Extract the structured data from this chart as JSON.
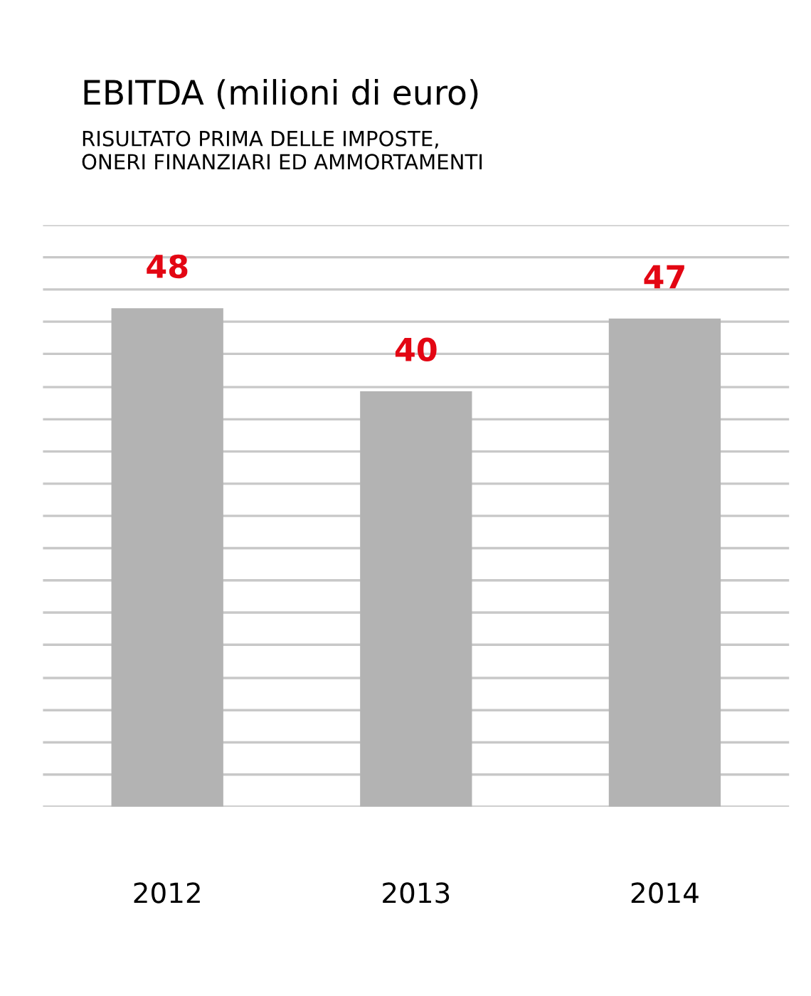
{
  "chart_data": {
    "type": "bar",
    "title": "EBITDA (milioni di euro)",
    "subtitle": "RISULTATO PRIMA DELLE IMPOSTE,\nONERI FINANZIARI ED AMMORTAMENTI",
    "categories": [
      "2012",
      "2013",
      "2014"
    ],
    "series": [
      {
        "color": "#b3b3b3",
        "values": [
          48,
          40,
          47
        ]
      }
    ],
    "data_labels": true,
    "ylim": [
      0,
      56
    ],
    "yticks": [
      0,
      3.1,
      6.2,
      9.3,
      12.4,
      15.6,
      18.7,
      21.8,
      24.9,
      28,
      31.1,
      34.2,
      37.3,
      40.4,
      43.6,
      46.7,
      49.8,
      52.9,
      56
    ],
    "tick_labels": "x",
    "grid": "y"
  }
}
